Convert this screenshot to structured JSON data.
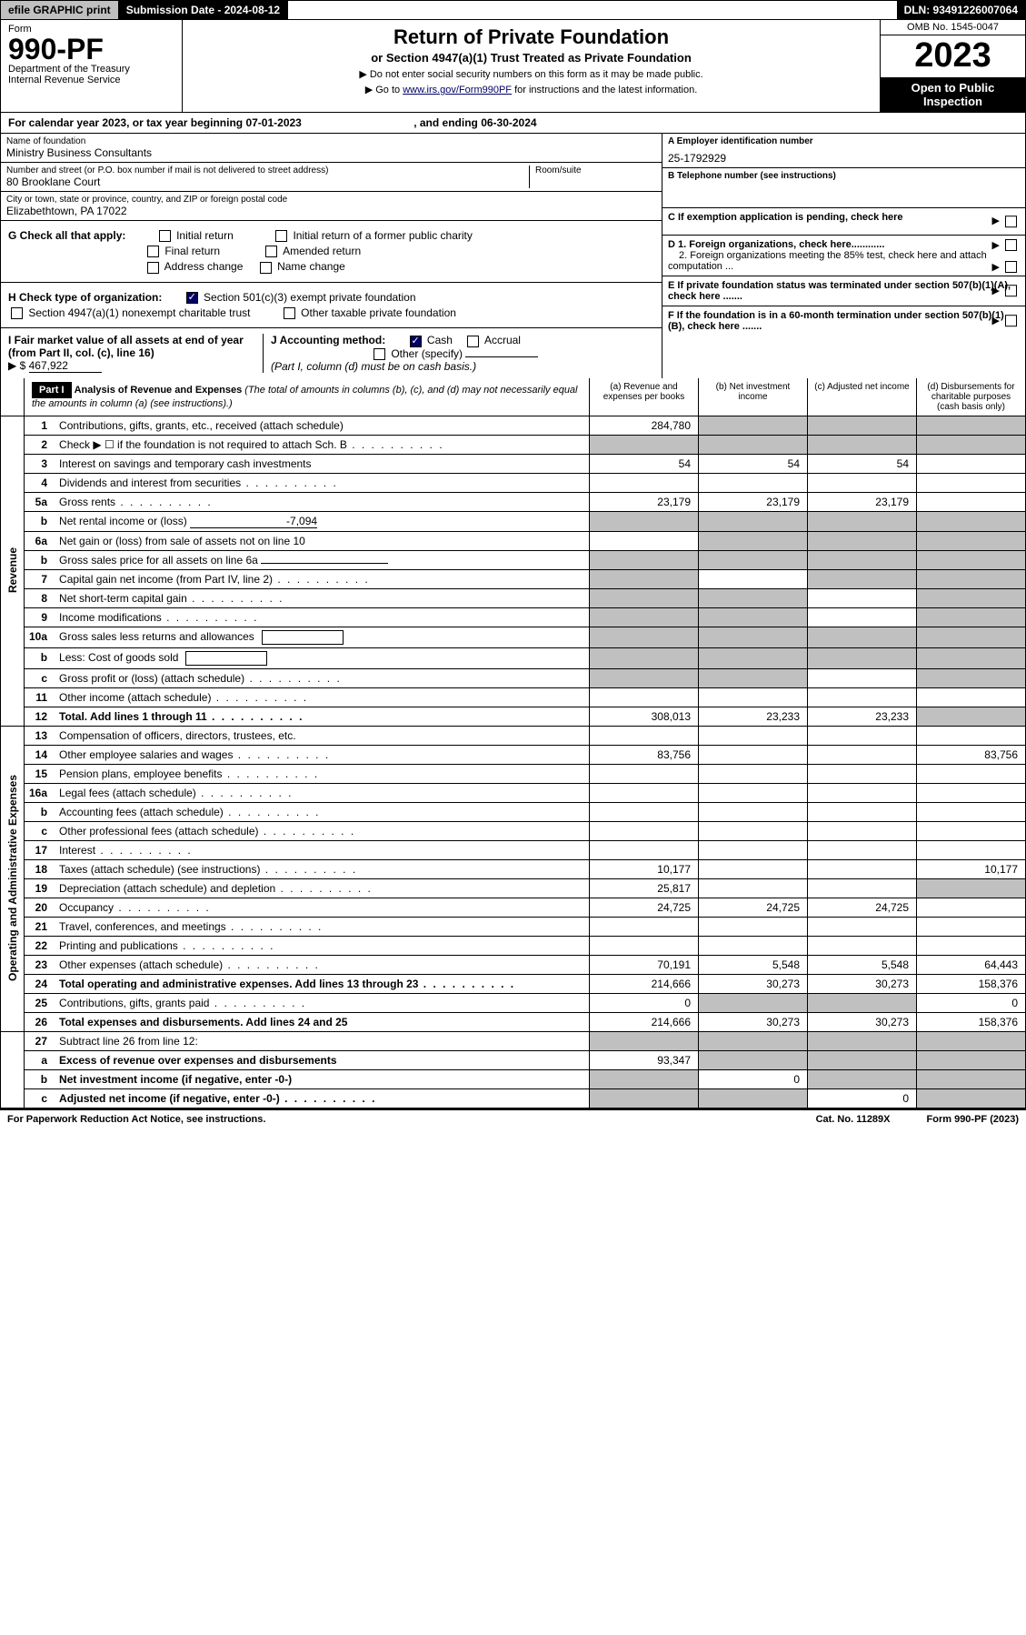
{
  "topbar": {
    "efile": "efile GRAPHIC print",
    "subdate": "Submission Date - 2024-08-12",
    "dln": "DLN: 93491226007064"
  },
  "header": {
    "form_label": "Form",
    "form_num": "990-PF",
    "dept": "Department of the Treasury",
    "irs": "Internal Revenue Service",
    "title": "Return of Private Foundation",
    "subtitle": "or Section 4947(a)(1) Trust Treated as Private Foundation",
    "instr1": "▶ Do not enter social security numbers on this form as it may be made public.",
    "instr2": "▶ Go to ",
    "instr2_link": "www.irs.gov/Form990PF",
    "instr2_tail": " for instructions and the latest information.",
    "omb": "OMB No. 1545-0047",
    "year": "2023",
    "open": "Open to Public Inspection"
  },
  "calyear": {
    "prefix": "For calendar year 2023, or tax year beginning ",
    "begin": "07-01-2023",
    "mid": ", and ending ",
    "end": "06-30-2024"
  },
  "name": {
    "label": "Name of foundation",
    "value": "Ministry Business Consultants"
  },
  "addr": {
    "label": "Number and street (or P.O. box number if mail is not delivered to street address)",
    "value": "80 Brooklane Court",
    "suite_label": "Room/suite",
    "suite": ""
  },
  "city": {
    "label": "City or town, state or province, country, and ZIP or foreign postal code",
    "value": "Elizabethtown, PA  17022"
  },
  "A": {
    "label": "A Employer identification number",
    "value": "25-1792929"
  },
  "B": {
    "label": "B Telephone number (see instructions)",
    "value": ""
  },
  "C": {
    "label": "C If exemption application is pending, check here"
  },
  "G": {
    "label": "G Check all that apply:",
    "opts": [
      "Initial return",
      "Final return",
      "Address change",
      "Initial return of a former public charity",
      "Amended return",
      "Name change"
    ]
  },
  "H": {
    "label": "H Check type of organization:",
    "opt1": "Section 501(c)(3) exempt private foundation",
    "opt2": "Section 4947(a)(1) nonexempt charitable trust",
    "opt3": "Other taxable private foundation"
  },
  "I": {
    "label": "I Fair market value of all assets at end of year (from Part II, col. (c), line 16)",
    "prefix": "▶ $",
    "value": "467,922"
  },
  "J": {
    "label": "J Accounting method:",
    "cash": "Cash",
    "accrual": "Accrual",
    "other": "Other (specify)",
    "note": "(Part I, column (d) must be on cash basis.)"
  },
  "D": {
    "d1": "D 1. Foreign organizations, check here............",
    "d2": "2. Foreign organizations meeting the 85% test, check here and attach computation ..."
  },
  "E": {
    "label": "E  If private foundation status was terminated under section 507(b)(1)(A), check here ......."
  },
  "F": {
    "label": "F  If the foundation is in a 60-month termination under section 507(b)(1)(B), check here ......."
  },
  "part1": {
    "badge": "Part I",
    "title": "Analysis of Revenue and Expenses",
    "note": "(The total of amounts in columns (b), (c), and (d) may not necessarily equal the amounts in column (a) (see instructions).)",
    "cols": {
      "a": "(a)   Revenue and expenses per books",
      "b": "(b)   Net investment income",
      "c": "(c)   Adjusted net income",
      "d": "(d)  Disbursements for charitable purposes (cash basis only)"
    }
  },
  "sides": {
    "rev": "Revenue",
    "ops": "Operating and Administrative Expenses"
  },
  "rows": [
    {
      "n": "1",
      "d": "Contributions, gifts, grants, etc., received (attach schedule)",
      "a": "284,780",
      "b": "",
      "c": "",
      "ds": "",
      "sb": true,
      "sc": true,
      "sd": true
    },
    {
      "n": "2",
      "d": "Check ▶ ☐ if the foundation is not required to attach Sch. B",
      "dots": true,
      "sa": true,
      "sb": true,
      "sc": true,
      "sd": true
    },
    {
      "n": "3",
      "d": "Interest on savings and temporary cash investments",
      "a": "54",
      "b": "54",
      "c": "54",
      "ds": ""
    },
    {
      "n": "4",
      "d": "Dividends and interest from securities",
      "dots": true,
      "a": "",
      "b": "",
      "c": "",
      "ds": ""
    },
    {
      "n": "5a",
      "d": "Gross rents",
      "dots": true,
      "a": "23,179",
      "b": "23,179",
      "c": "23,179",
      "ds": ""
    },
    {
      "n": "b",
      "d": "Net rental income or (loss)",
      "inline": "-7,094",
      "sa": true,
      "sb": true,
      "sc": true,
      "sd": true
    },
    {
      "n": "6a",
      "d": "Net gain or (loss) from sale of assets not on line 10",
      "a": "",
      "sb": true,
      "sc": true,
      "sd": true
    },
    {
      "n": "b",
      "d": "Gross sales price for all assets on line 6a",
      "inline": "",
      "sa": true,
      "sb": true,
      "sc": true,
      "sd": true
    },
    {
      "n": "7",
      "d": "Capital gain net income (from Part IV, line 2)",
      "dots": true,
      "sa": true,
      "b": "",
      "sc": true,
      "sd": true
    },
    {
      "n": "8",
      "d": "Net short-term capital gain",
      "dots": true,
      "sa": true,
      "sb": true,
      "c": "",
      "sd": true
    },
    {
      "n": "9",
      "d": "Income modifications",
      "dots": true,
      "sa": true,
      "sb": true,
      "c": "",
      "sd": true
    },
    {
      "n": "10a",
      "d": "Gross sales less returns and allowances",
      "sub": true,
      "sa": true,
      "sb": true,
      "sc": true,
      "sd": true
    },
    {
      "n": "b",
      "d": "Less: Cost of goods sold",
      "dots": true,
      "sub": true,
      "sa": true,
      "sb": true,
      "sc": true,
      "sd": true
    },
    {
      "n": "c",
      "d": "Gross profit or (loss) (attach schedule)",
      "dots": true,
      "sa": true,
      "sb": true,
      "c": "",
      "sd": true
    },
    {
      "n": "11",
      "d": "Other income (attach schedule)",
      "dots": true,
      "a": "",
      "b": "",
      "c": "",
      "ds": ""
    },
    {
      "n": "12",
      "d": "Total. Add lines 1 through 11",
      "dots": true,
      "bold": true,
      "a": "308,013",
      "b": "23,233",
      "c": "23,233",
      "sd": true
    },
    {
      "n": "13",
      "d": "Compensation of officers, directors, trustees, etc.",
      "a": "",
      "b": "",
      "c": "",
      "ds": "",
      "sect": "ops"
    },
    {
      "n": "14",
      "d": "Other employee salaries and wages",
      "dots": true,
      "a": "83,756",
      "b": "",
      "c": "",
      "ds": "83,756"
    },
    {
      "n": "15",
      "d": "Pension plans, employee benefits",
      "dots": true,
      "a": "",
      "b": "",
      "c": "",
      "ds": ""
    },
    {
      "n": "16a",
      "d": "Legal fees (attach schedule)",
      "dots": true,
      "a": "",
      "b": "",
      "c": "",
      "ds": ""
    },
    {
      "n": "b",
      "d": "Accounting fees (attach schedule)",
      "dots": true,
      "a": "",
      "b": "",
      "c": "",
      "ds": ""
    },
    {
      "n": "c",
      "d": "Other professional fees (attach schedule)",
      "dots": true,
      "a": "",
      "b": "",
      "c": "",
      "ds": ""
    },
    {
      "n": "17",
      "d": "Interest",
      "dots": true,
      "a": "",
      "b": "",
      "c": "",
      "ds": ""
    },
    {
      "n": "18",
      "d": "Taxes (attach schedule) (see instructions)",
      "dots": true,
      "a": "10,177",
      "b": "",
      "c": "",
      "ds": "10,177"
    },
    {
      "n": "19",
      "d": "Depreciation (attach schedule) and depletion",
      "dots": true,
      "a": "25,817",
      "b": "",
      "c": "",
      "sd": true
    },
    {
      "n": "20",
      "d": "Occupancy",
      "dots": true,
      "a": "24,725",
      "b": "24,725",
      "c": "24,725",
      "ds": ""
    },
    {
      "n": "21",
      "d": "Travel, conferences, and meetings",
      "dots": true,
      "a": "",
      "b": "",
      "c": "",
      "ds": ""
    },
    {
      "n": "22",
      "d": "Printing and publications",
      "dots": true,
      "a": "",
      "b": "",
      "c": "",
      "ds": ""
    },
    {
      "n": "23",
      "d": "Other expenses (attach schedule)",
      "dots": true,
      "a": "70,191",
      "b": "5,548",
      "c": "5,548",
      "ds": "64,443"
    },
    {
      "n": "24",
      "d": "Total operating and administrative expenses. Add lines 13 through 23",
      "dots": true,
      "bold": true,
      "a": "214,666",
      "b": "30,273",
      "c": "30,273",
      "ds": "158,376"
    },
    {
      "n": "25",
      "d": "Contributions, gifts, grants paid",
      "dots": true,
      "a": "0",
      "sb": true,
      "sc": true,
      "ds": "0"
    },
    {
      "n": "26",
      "d": "Total expenses and disbursements. Add lines 24 and 25",
      "bold": true,
      "a": "214,666",
      "b": "30,273",
      "c": "30,273",
      "ds": "158,376"
    },
    {
      "n": "27",
      "d": "Subtract line 26 from line 12:",
      "sa": true,
      "sb": true,
      "sc": true,
      "sd": true,
      "sect": "net"
    },
    {
      "n": "a",
      "d": "Excess of revenue over expenses and disbursements",
      "bold": true,
      "a": "93,347",
      "sb": true,
      "sc": true,
      "sd": true
    },
    {
      "n": "b",
      "d": "Net investment income (if negative, enter -0-)",
      "bold": true,
      "sa": true,
      "b": "0",
      "sc": true,
      "sd": true
    },
    {
      "n": "c",
      "d": "Adjusted net income (if negative, enter -0-)",
      "dots": true,
      "bold": true,
      "sa": true,
      "sb": true,
      "c": "0",
      "sd": true
    }
  ],
  "footer": {
    "left": "For Paperwork Reduction Act Notice, see instructions.",
    "mid": "Cat. No. 11289X",
    "right": "Form 990-PF (2023)"
  }
}
